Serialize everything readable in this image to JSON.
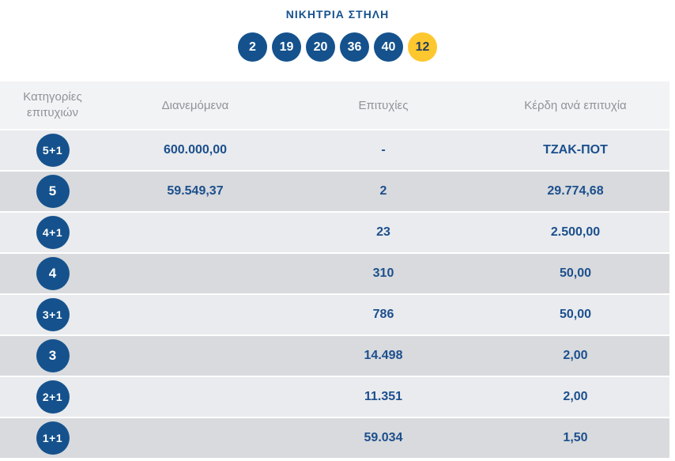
{
  "title": "ΝΙΚΗΤΡΙΑ ΣΤΗΛΗ",
  "winning_numbers": {
    "main": [
      "2",
      "19",
      "20",
      "36",
      "40"
    ],
    "bonus": "12"
  },
  "colors": {
    "ball_blue": "#15528d",
    "bonus_yellow": "#fdc72f",
    "value_blue": "#1c4f8d",
    "header_bg": "#f2f3f5",
    "header_text": "#8e9399",
    "row_light": "#e9ebee",
    "row_dark": "#d8dadd"
  },
  "table": {
    "headers": {
      "category": "Κατηγορίες επιτυχιών",
      "distributed": "Διανεμόμενα",
      "wins": "Επιτυχίες",
      "prize": "Κέρδη ανά επιτυχία"
    },
    "rows": [
      {
        "category": "5+1",
        "distributed": "600.000,00",
        "wins": "-",
        "prize": "ΤΖΑΚ-ΠΟΤ"
      },
      {
        "category": "5",
        "distributed": "59.549,37",
        "wins": "2",
        "prize": "29.774,68"
      },
      {
        "category": "4+1",
        "distributed": "",
        "wins": "23",
        "prize": "2.500,00"
      },
      {
        "category": "4",
        "distributed": "",
        "wins": "310",
        "prize": "50,00"
      },
      {
        "category": "3+1",
        "distributed": "",
        "wins": "786",
        "prize": "50,00"
      },
      {
        "category": "3",
        "distributed": "",
        "wins": "14.498",
        "prize": "2,00"
      },
      {
        "category": "2+1",
        "distributed": "",
        "wins": "11.351",
        "prize": "2,00"
      },
      {
        "category": "1+1",
        "distributed": "",
        "wins": "59.034",
        "prize": "1,50"
      }
    ]
  }
}
